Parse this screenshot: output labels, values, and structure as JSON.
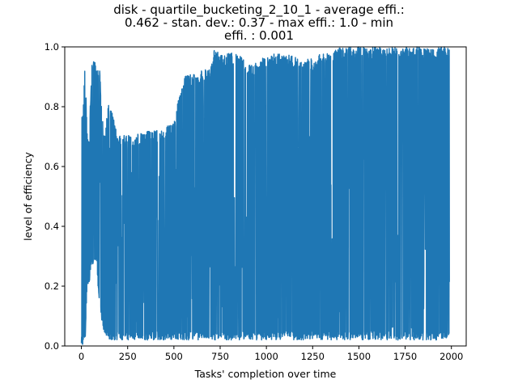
{
  "chart_data": {
    "type": "line",
    "title_lines": [
      "disk - quartile_bucketing_2_10_1 - average effi.:",
      "0.462 - stan. dev.: 0.37 - max effi.: 1.0 - min",
      "effi. : 0.001"
    ],
    "xlabel": "Tasks' completion over time",
    "ylabel": "level of efficiency",
    "xlim": [
      -90,
      2080
    ],
    "ylim": [
      0,
      1.0
    ],
    "xticks": [
      0,
      250,
      500,
      750,
      1000,
      1250,
      1500,
      1750,
      2000
    ],
    "xtick_labels": [
      "0",
      "250",
      "500",
      "750",
      "1000",
      "1250",
      "1500",
      "1750",
      "2000"
    ],
    "yticks": [
      0.0,
      0.2,
      0.4,
      0.6,
      0.8,
      1.0
    ],
    "ytick_labels": [
      "0.0",
      "0.2",
      "0.4",
      "0.6",
      "0.8",
      "1.0"
    ],
    "grid": false,
    "line_color": "#1f77b4",
    "series": [
      {
        "n_points": 1990,
        "envelope": {
          "x": [
            0,
            10,
            20,
            30,
            40,
            60,
            80,
            100,
            120,
            150,
            200,
            250,
            300,
            350,
            400,
            450,
            500,
            550,
            600,
            650,
            700,
            720,
            750,
            800,
            850,
            900,
            950,
            1000,
            1050,
            1100,
            1150,
            1200,
            1250,
            1300,
            1350,
            1400,
            1450,
            1500,
            1550,
            1600,
            1650,
            1700,
            1750,
            1800,
            1850,
            1900,
            1950,
            1990
          ],
          "high": [
            0.8,
            0.8,
            0.97,
            0.72,
            0.7,
            0.98,
            0.93,
            0.92,
            0.7,
            0.82,
            0.7,
            0.71,
            0.71,
            0.72,
            0.72,
            0.73,
            0.75,
            0.9,
            0.91,
            0.92,
            0.93,
            1.0,
            0.97,
            0.98,
            0.98,
            0.94,
            0.95,
            0.97,
            0.98,
            0.98,
            0.97,
            0.96,
            0.96,
            0.98,
            0.98,
            1.0,
            1.0,
            1.0,
            1.0,
            1.0,
            1.0,
            1.0,
            1.0,
            1.0,
            1.0,
            1.0,
            1.0,
            1.0
          ],
          "low": [
            0.0,
            0.0,
            0.01,
            0.2,
            0.2,
            0.27,
            0.28,
            0.12,
            0.05,
            0.02,
            0.02,
            0.02,
            0.02,
            0.02,
            0.02,
            0.02,
            0.02,
            0.02,
            0.02,
            0.02,
            0.02,
            0.02,
            0.02,
            0.02,
            0.02,
            0.02,
            0.02,
            0.02,
            0.02,
            0.02,
            0.02,
            0.02,
            0.02,
            0.02,
            0.02,
            0.02,
            0.02,
            0.02,
            0.02,
            0.02,
            0.02,
            0.02,
            0.02,
            0.02,
            0.02,
            0.02,
            0.02,
            0.02
          ],
          "typical": [
            0.5,
            0.6,
            0.7,
            0.6,
            0.55,
            0.6,
            0.6,
            0.55,
            0.6,
            0.6,
            0.65,
            0.62,
            0.63,
            0.65,
            0.62,
            0.6,
            0.62,
            0.66,
            0.7,
            0.72,
            0.75,
            0.75,
            0.6,
            0.58,
            0.52,
            0.5,
            0.52,
            0.55,
            0.6,
            0.62,
            0.68,
            0.7,
            0.75,
            0.82,
            0.85,
            0.9,
            0.93,
            0.96,
            0.96,
            0.97,
            0.97,
            0.97,
            0.97,
            0.97,
            0.97,
            0.97,
            0.97,
            0.96
          ]
        }
      }
    ]
  }
}
